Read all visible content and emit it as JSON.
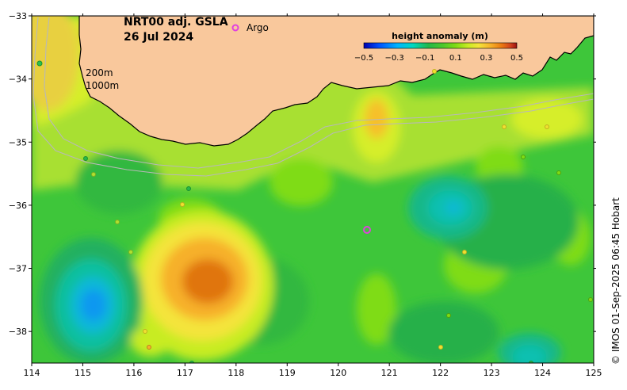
{
  "title": {
    "line1": "NRT00 adj. GSLA",
    "line2": "26 Jul 2024"
  },
  "legend": {
    "argo_symbol": "o",
    "argo_label": "Argo"
  },
  "isobaths": {
    "label_200": "200m",
    "label_1000": "1000m"
  },
  "colorbar": {
    "label": "height anomaly (m)",
    "ticks": [
      "−0.5",
      "−0.3",
      "−0.1",
      "0.1",
      "0.3",
      "0.5"
    ],
    "colors": [
      "#0000b0",
      "#0050ff",
      "#00b4ff",
      "#00d8c0",
      "#10c090",
      "#22b84a",
      "#4ec82a",
      "#7fdc14",
      "#c8ec24",
      "#f4e43a",
      "#f6b02a",
      "#ea7a12",
      "#d0401c",
      "#9a1010"
    ]
  },
  "axes": {
    "x_ticks": [
      "114",
      "115",
      "116",
      "117",
      "118",
      "119",
      "120",
      "121",
      "122",
      "123",
      "124",
      "125"
    ],
    "y_ticks": [
      "−33",
      "−34",
      "−35",
      "−36",
      "−37",
      "−38"
    ],
    "x_range": [
      114,
      125
    ],
    "y_range": [
      -38.5,
      -33
    ]
  },
  "credit": "© IMOS 01-Sep-2025 06:45 Hobart",
  "colors": {
    "land": "#f9c89c",
    "coast": "#000000",
    "isobath": "#b8b8b8",
    "argo": "#e040e0"
  }
}
